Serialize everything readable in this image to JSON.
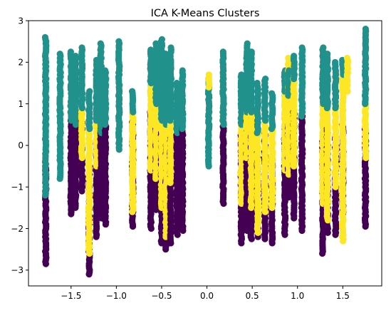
{
  "chart_data": {
    "type": "scatter",
    "title": "ICA K-Means Clusters",
    "xlabel": "",
    "ylabel": "",
    "xlim": [
      -1.97,
      1.93
    ],
    "ylim": [
      -3.38,
      3.0
    ],
    "grid": false,
    "legend": "none",
    "x_ticks": [
      -1.5,
      -1.0,
      -0.5,
      0.0,
      0.5,
      1.0,
      1.5
    ],
    "x_tick_labels": [
      "−1.5",
      "−1.0",
      "−0.5",
      "0.0",
      "0.5",
      "1.0",
      "1.5"
    ],
    "y_ticks": [
      -3,
      -2,
      -1,
      0,
      1,
      2,
      3
    ],
    "y_tick_labels": [
      "−3",
      "−2",
      "−1",
      "0",
      "1",
      "2",
      "3"
    ],
    "cluster_colors": [
      "#440154",
      "#21918c",
      "#fde725"
    ],
    "columns": [
      {
        "x": -1.78,
        "segments": [
          [
            0,
            -2.85,
            -0.55
          ],
          [
            1,
            -1.2,
            2.62
          ]
        ]
      },
      {
        "x": -1.62,
        "segments": [
          [
            1,
            -0.8,
            2.2
          ]
        ]
      },
      {
        "x": -1.5,
        "segments": [
          [
            0,
            -1.65,
            0.6
          ],
          [
            1,
            0.6,
            2.25
          ]
        ]
      },
      {
        "x": -1.45,
        "segments": [
          [
            0,
            -1.5,
            0.5
          ],
          [
            1,
            0.5,
            2.15
          ]
        ]
      },
      {
        "x": -1.38,
        "segments": [
          [
            0,
            -1.1,
            0.6
          ],
          [
            2,
            -0.3,
            0.9
          ],
          [
            1,
            0.9,
            2.35
          ]
        ]
      },
      {
        "x": -1.3,
        "segments": [
          [
            0,
            -3.1,
            -0.5
          ],
          [
            2,
            -2.6,
            0.4
          ],
          [
            1,
            0.4,
            1.3
          ]
        ]
      },
      {
        "x": -1.22,
        "segments": [
          [
            0,
            -2.2,
            0.2
          ],
          [
            2,
            -0.5,
            0.6
          ],
          [
            1,
            0.6,
            2.05
          ]
        ]
      },
      {
        "x": -1.17,
        "segments": [
          [
            0,
            -1.75,
            0.4
          ],
          [
            1,
            0.3,
            2.45
          ]
        ]
      },
      {
        "x": -1.12,
        "segments": [
          [
            0,
            -1.9,
            0.5
          ],
          [
            1,
            0.5,
            1.8
          ]
        ]
      },
      {
        "x": -0.97,
        "segments": [
          [
            1,
            -0.1,
            2.52
          ]
        ]
      },
      {
        "x": -0.82,
        "segments": [
          [
            0,
            -1.95,
            0.6
          ],
          [
            2,
            -1.6,
            0.8
          ],
          [
            1,
            0.8,
            1.3
          ]
        ]
      },
      {
        "x": -0.62,
        "segments": [
          [
            0,
            -2.0,
            0.8
          ],
          [
            2,
            -0.6,
            1.5
          ],
          [
            1,
            1.5,
            2.3
          ]
        ]
      },
      {
        "x": -0.56,
        "segments": [
          [
            0,
            -1.55,
            0.4
          ],
          [
            2,
            -0.8,
            1.0
          ],
          [
            1,
            1.0,
            2.45
          ]
        ]
      },
      {
        "x": -0.5,
        "segments": [
          [
            0,
            -2.35,
            0.3
          ],
          [
            2,
            -1.5,
            0.6
          ],
          [
            1,
            0.6,
            2.55
          ]
        ]
      },
      {
        "x": -0.45,
        "segments": [
          [
            0,
            -2.5,
            0.0
          ],
          [
            2,
            -2.2,
            0.5
          ],
          [
            1,
            0.5,
            2.2
          ]
        ]
      },
      {
        "x": -0.4,
        "segments": [
          [
            0,
            -2.35,
            0.2
          ],
          [
            2,
            -0.9,
            0.6
          ],
          [
            1,
            0.6,
            2.35
          ]
        ]
      },
      {
        "x": -0.33,
        "segments": [
          [
            0,
            -2.15,
            0.3
          ],
          [
            1,
            0.3,
            1.5
          ]
        ]
      },
      {
        "x": -0.27,
        "segments": [
          [
            0,
            -2.05,
            0.4
          ],
          [
            1,
            0.4,
            1.8
          ]
        ]
      },
      {
        "x": 0.02,
        "segments": [
          [
            1,
            -0.5,
            1.6
          ],
          [
            2,
            1.4,
            1.7
          ]
        ]
      },
      {
        "x": 0.18,
        "segments": [
          [
            0,
            -1.4,
            0.5
          ],
          [
            1,
            0.5,
            2.25
          ]
        ]
      },
      {
        "x": 0.38,
        "segments": [
          [
            0,
            -2.35,
            0.3
          ],
          [
            2,
            -1.4,
            0.5
          ],
          [
            1,
            0.5,
            1.7
          ]
        ]
      },
      {
        "x": 0.44,
        "segments": [
          [
            0,
            -2.05,
            0.6
          ],
          [
            2,
            -0.3,
            0.8
          ],
          [
            1,
            0.8,
            2.45
          ]
        ]
      },
      {
        "x": 0.49,
        "segments": [
          [
            0,
            -2.25,
            0.3
          ],
          [
            2,
            -1.5,
            0.8
          ],
          [
            1,
            0.8,
            2.25
          ]
        ]
      },
      {
        "x": 0.56,
        "segments": [
          [
            0,
            -2.2,
            -0.3
          ],
          [
            2,
            -2.1,
            0.3
          ],
          [
            1,
            0.3,
            1.5
          ]
        ]
      },
      {
        "x": 0.64,
        "segments": [
          [
            0,
            -2.25,
            0.3
          ],
          [
            2,
            -1.6,
            0.6
          ],
          [
            1,
            0.6,
            1.6
          ]
        ]
      },
      {
        "x": 0.72,
        "segments": [
          [
            0,
            -2.35,
            -0.3
          ],
          [
            2,
            -1.5,
            0.4
          ],
          [
            1,
            0.4,
            1.28
          ]
        ]
      },
      {
        "x": 0.86,
        "segments": [
          [
            0,
            -2.15,
            0.4
          ],
          [
            2,
            -0.6,
            1.3
          ],
          [
            1,
            1.3,
            1.8
          ]
        ]
      },
      {
        "x": 0.9,
        "segments": [
          [
            0,
            -1.25,
            0.6
          ],
          [
            2,
            -0.7,
            2.1
          ],
          [
            1,
            1.2,
            1.8
          ]
        ]
      },
      {
        "x": 0.96,
        "segments": [
          [
            0,
            -1.75,
            0.8
          ],
          [
            2,
            -0.5,
            1.8
          ],
          [
            1,
            1.6,
            2.15
          ]
        ]
      },
      {
        "x": 1.05,
        "segments": [
          [
            0,
            -2.05,
            0.7
          ],
          [
            1,
            0.7,
            2.35
          ]
        ]
      },
      {
        "x": 1.28,
        "segments": [
          [
            0,
            -2.6,
            0.1
          ],
          [
            2,
            -1.4,
            1.0
          ],
          [
            1,
            1.0,
            2.35
          ]
        ]
      },
      {
        "x": 1.33,
        "segments": [
          [
            0,
            -2.1,
            0.4
          ],
          [
            2,
            -1.8,
            0.9
          ],
          [
            1,
            0.9,
            2.2
          ]
        ]
      },
      {
        "x": 1.42,
        "segments": [
          [
            0,
            -2.15,
            0.2
          ],
          [
            2,
            -1.0,
            0.9
          ],
          [
            1,
            0.9,
            2.0
          ]
        ]
      },
      {
        "x": 1.5,
        "segments": [
          [
            0,
            -1.65,
            0.5
          ],
          [
            2,
            -2.3,
            1.7
          ],
          [
            1,
            1.7,
            2.05
          ]
        ]
      },
      {
        "x": 1.55,
        "segments": [
          [
            2,
            1.3,
            2.1
          ]
        ]
      },
      {
        "x": 1.75,
        "segments": [
          [
            0,
            -1.95,
            0.4
          ],
          [
            2,
            -0.3,
            1.0
          ],
          [
            1,
            1.0,
            2.8
          ]
        ]
      }
    ]
  }
}
